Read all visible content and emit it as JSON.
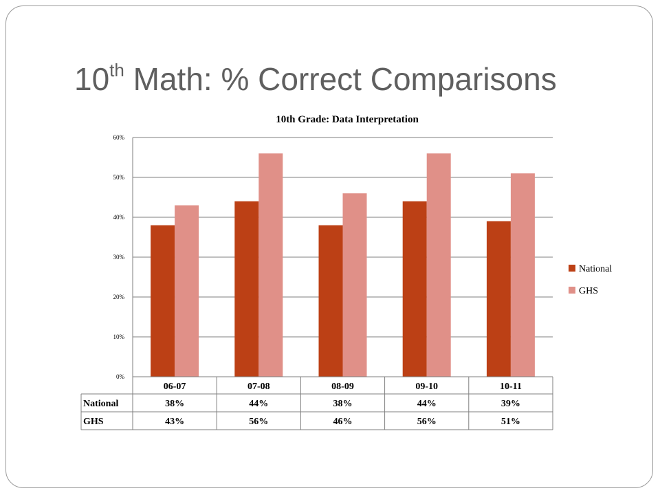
{
  "slide": {
    "title_base": "10",
    "title_sup": "th",
    "title_rest": " Math:  % Correct Comparisons"
  },
  "colors": {
    "national": "#BC4015",
    "ghs": "#E09088",
    "grid": "#7f7f7f",
    "text": "#000000",
    "title": "#5f5f5f"
  },
  "chart_data": {
    "type": "bar",
    "title": "10th Grade: Data Interpretation",
    "categories": [
      "06-07",
      "07-08",
      "08-09",
      "09-10",
      "10-11"
    ],
    "series": [
      {
        "name": "National",
        "values": [
          38,
          44,
          38,
          44,
          39
        ],
        "labels": [
          "38%",
          "44%",
          "38%",
          "44%",
          "39%"
        ]
      },
      {
        "name": "GHS",
        "values": [
          43,
          56,
          46,
          56,
          51
        ],
        "labels": [
          "43%",
          "56%",
          "46%",
          "56%",
          "51%"
        ]
      }
    ],
    "yticks": [
      "0%",
      "10%",
      "20%",
      "30%",
      "40%",
      "50%",
      "60%"
    ],
    "ylim": [
      0,
      60
    ],
    "grid": true,
    "legend": "right",
    "data_table": true
  }
}
